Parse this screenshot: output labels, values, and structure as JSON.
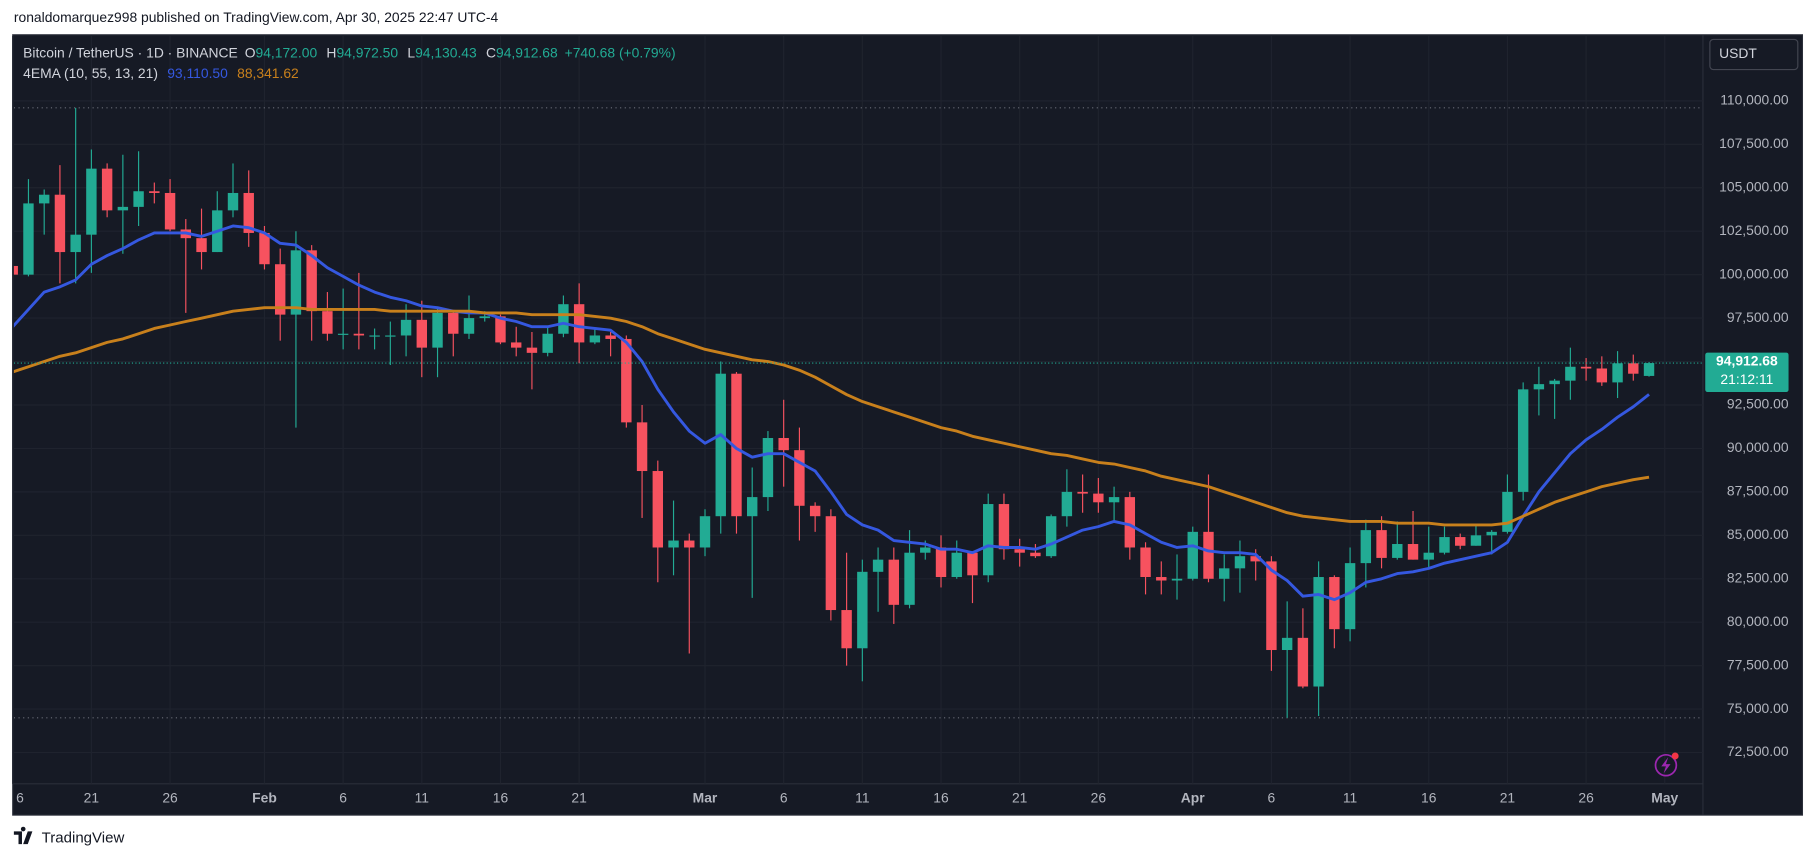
{
  "header": "ronaldomarquez998 published on TradingView.com, Apr 30, 2025 22:47 UTC-4",
  "footer": {
    "brand": "TradingView"
  },
  "chart_data": {
    "type": "candlestick",
    "title": "Bitcoin / TetherUS · 1D · BINANCE",
    "ohlc_legend": [
      [
        "O",
        "94,172.00"
      ],
      [
        "H",
        "94,972.50"
      ],
      [
        "L",
        "94,130.43"
      ],
      [
        "C",
        "94,912.68"
      ]
    ],
    "change_label": "+740.68 (+0.79%)",
    "indicator_label": "4EMA (10, 55, 13, 21)",
    "currency": "USDT",
    "price_tag": {
      "price": "94,912.68",
      "countdown": "21:12:11"
    },
    "up_color": "#22ab94",
    "down_color": "#f7525f",
    "grid": true,
    "categories": [
      "6",
      null,
      null,
      null,
      null,
      "21",
      null,
      null,
      null,
      null,
      "26",
      null,
      null,
      null,
      null,
      null,
      "Feb",
      null,
      null,
      null,
      null,
      "6",
      null,
      null,
      null,
      null,
      "11",
      null,
      null,
      null,
      null,
      "16",
      null,
      null,
      null,
      null,
      "21",
      null,
      null,
      null,
      null,
      null,
      null,
      null,
      "Mar",
      null,
      null,
      null,
      null,
      "6",
      null,
      null,
      null,
      null,
      "11",
      null,
      null,
      null,
      null,
      "16",
      null,
      null,
      null,
      null,
      "21",
      null,
      null,
      null,
      null,
      "26",
      null,
      null,
      null,
      null,
      null,
      "Apr",
      null,
      null,
      null,
      null,
      "6",
      null,
      null,
      null,
      null,
      "11",
      null,
      null,
      null,
      null,
      "16",
      null,
      null,
      null,
      null,
      "21",
      null,
      null,
      null,
      null,
      "26",
      null,
      null,
      null,
      null,
      "May"
    ],
    "open": [
      100500,
      100000,
      104100,
      104600,
      101300,
      102300,
      106100,
      103700,
      103900,
      104800,
      104700,
      102600,
      102100,
      101300,
      103700,
      104700,
      102400,
      100600,
      97700,
      101400,
      97900,
      96600,
      96600,
      96500,
      96500,
      96500,
      97400,
      95800,
      97800,
      96600,
      97500,
      97600,
      96100,
      95800,
      95500,
      96600,
      98300,
      96100,
      96500,
      96300,
      91500,
      88700,
      84300,
      84700,
      84300,
      86100,
      94300,
      86100,
      87200,
      90600,
      89900,
      86700,
      86100,
      80700,
      78500,
      82900,
      83600,
      81000,
      84000,
      84300,
      82600,
      84000,
      82700,
      86800,
      84200,
      84000,
      83800,
      86100,
      87500,
      87400,
      86900,
      87200,
      84300,
      82600,
      82400,
      82500,
      85200,
      82500,
      83100,
      83800,
      83500,
      78400,
      79100,
      76300,
      82600,
      79600,
      83400,
      85300,
      83700,
      84500,
      83600,
      84000,
      84900,
      84400,
      85000,
      85200,
      87500,
      93400,
      93700,
      93900,
      94700,
      94600,
      93800,
      94900,
      94172,
      null
    ],
    "high": [
      101300,
      105500,
      104900,
      106300,
      109600,
      107200,
      106400,
      106900,
      107100,
      105300,
      105500,
      103200,
      103800,
      104800,
      106400,
      106000,
      102800,
      101500,
      102500,
      101700,
      99000,
      99200,
      100100,
      96900,
      97300,
      98300,
      98500,
      98100,
      97900,
      98800,
      97900,
      97700,
      97000,
      96700,
      97000,
      98800,
      99500,
      96900,
      96700,
      96500,
      92500,
      89300,
      87000,
      85100,
      86500,
      95000,
      94400,
      88900,
      91000,
      92800,
      91200,
      86900,
      86500,
      84000,
      83600,
      84300,
      84300,
      85300,
      84700,
      85000,
      84700,
      84000,
      87400,
      87400,
      84800,
      84500,
      86200,
      88800,
      88500,
      88300,
      87800,
      87500,
      84600,
      83500,
      83900,
      85500,
      88500,
      83900,
      84700,
      84200,
      83800,
      81200,
      80800,
      83500,
      82700,
      84300,
      85900,
      86100,
      85800,
      86400,
      85500,
      85500,
      85100,
      85600,
      85300,
      88500,
      93800,
      94700,
      94000,
      95800,
      95200,
      95300,
      95600,
      95400,
      94972.5,
      null
    ],
    "low": [
      99200,
      99900,
      102300,
      99500,
      99500,
      100100,
      103300,
      101200,
      102800,
      104100,
      102500,
      97800,
      100300,
      101300,
      103300,
      101600,
      100300,
      96200,
      91200,
      96200,
      96200,
      95700,
      95700,
      95700,
      94800,
      95300,
      94100,
      94100,
      95300,
      96300,
      97300,
      96000,
      95300,
      93400,
      95300,
      96400,
      94900,
      96000,
      95300,
      91200,
      86000,
      82300,
      82700,
      78200,
      83800,
      85100,
      85100,
      81400,
      86400,
      87800,
      84700,
      85200,
      80100,
      77500,
      76600,
      80600,
      79900,
      80800,
      83600,
      82000,
      82500,
      81100,
      82300,
      83600,
      83200,
      83700,
      83700,
      85500,
      86300,
      86300,
      85800,
      83600,
      81600,
      81600,
      81300,
      82400,
      82300,
      81200,
      81700,
      82400,
      77200,
      74500,
      76200,
      74600,
      78500,
      78900,
      82000,
      83100,
      83600,
      83600,
      83100,
      83900,
      84200,
      84400,
      83900,
      85100,
      87000,
      91900,
      91700,
      92800,
      93900,
      93600,
      92900,
      93900,
      94130.43,
      null
    ],
    "close": [
      100000,
      104100,
      104600,
      101300,
      102300,
      106100,
      103700,
      103900,
      104800,
      104700,
      102600,
      102100,
      101300,
      103700,
      104700,
      102400,
      100600,
      97700,
      101400,
      97900,
      96600,
      96600,
      96500,
      96500,
      96500,
      97400,
      95800,
      97800,
      96600,
      97500,
      97600,
      96100,
      95800,
      95500,
      96600,
      98300,
      96100,
      96500,
      96300,
      91500,
      88700,
      84300,
      84700,
      84300,
      86100,
      94300,
      86100,
      87200,
      90600,
      89900,
      86700,
      86100,
      80700,
      78500,
      82900,
      83600,
      81000,
      84000,
      84300,
      82600,
      84000,
      82700,
      86800,
      84200,
      84000,
      83800,
      86100,
      87500,
      87400,
      86900,
      87200,
      84300,
      82600,
      82400,
      82500,
      85200,
      82500,
      83100,
      83800,
      83500,
      78400,
      79100,
      76300,
      82600,
      79600,
      83400,
      85300,
      83700,
      84500,
      83600,
      84000,
      84900,
      84400,
      85000,
      85200,
      87500,
      93400,
      93700,
      93900,
      94700,
      94600,
      93800,
      94900,
      94300,
      94912.68,
      null
    ],
    "series": [
      {
        "color": "#3558e0",
        "last_label": "93,110.50",
        "values": [
          97000,
          98000,
          99000,
          99300,
          99700,
          100600,
          101100,
          101500,
          102000,
          102400,
          102400,
          102400,
          102200,
          102500,
          102800,
          102700,
          102400,
          101800,
          101700,
          101100,
          100400,
          99900,
          99400,
          99000,
          98700,
          98500,
          98200,
          98100,
          97900,
          97800,
          97800,
          97500,
          97300,
          97000,
          97000,
          97200,
          97000,
          96900,
          96800,
          96100,
          95000,
          93400,
          92100,
          91000,
          90300,
          90800,
          90000,
          89500,
          89700,
          89700,
          89200,
          88700,
          87500,
          86200,
          85600,
          85300,
          84700,
          84600,
          84500,
          84200,
          84200,
          84000,
          84400,
          84300,
          84300,
          84200,
          84500,
          84900,
          85300,
          85500,
          85800,
          85600,
          85100,
          84600,
          84300,
          84400,
          84100,
          84000,
          84000,
          83900,
          83000,
          82400,
          81500,
          81600,
          81300,
          81700,
          82300,
          82500,
          82800,
          82900,
          83100,
          83400,
          83600,
          83800,
          84000,
          84600,
          86100,
          87500,
          88600,
          89700,
          90500,
          91100,
          91800,
          92400,
          93110.5,
          null
        ]
      },
      {
        "color": "#c8801c",
        "last_label": "88,341.62",
        "values": [
          94400,
          94700,
          95000,
          95300,
          95500,
          95800,
          96100,
          96300,
          96600,
          96900,
          97100,
          97300,
          97500,
          97700,
          97900,
          98000,
          98100,
          98100,
          98100,
          98000,
          98000,
          98000,
          98000,
          98000,
          97900,
          97900,
          97900,
          97900,
          97900,
          97900,
          97800,
          97800,
          97800,
          97700,
          97700,
          97700,
          97700,
          97600,
          97500,
          97300,
          97000,
          96600,
          96300,
          96000,
          95700,
          95500,
          95300,
          95100,
          95000,
          94800,
          94500,
          94100,
          93600,
          93100,
          92700,
          92400,
          92100,
          91800,
          91500,
          91200,
          91000,
          90700,
          90500,
          90300,
          90100,
          89900,
          89700,
          89600,
          89400,
          89200,
          89100,
          88900,
          88700,
          88400,
          88200,
          88000,
          87800,
          87500,
          87200,
          86900,
          86600,
          86300,
          86100,
          86000,
          85900,
          85800,
          85800,
          85800,
          85700,
          85700,
          85700,
          85600,
          85600,
          85600,
          85600,
          85700,
          86100,
          86500,
          86900,
          87200,
          87500,
          87800,
          88000,
          88200,
          88341.62,
          null
        ]
      }
    ],
    "ylim": [
      70000,
      112000
    ],
    "yticks": [
      {
        "value": 72500,
        "label": "72,500.00"
      },
      {
        "value": 75000,
        "label": "75,000.00"
      },
      {
        "value": 77500,
        "label": "77,500.00"
      },
      {
        "value": 80000,
        "label": "80,000.00"
      },
      {
        "value": 82500,
        "label": "82,500.00"
      },
      {
        "value": 85000,
        "label": "85,000.00"
      },
      {
        "value": 87500,
        "label": "87,500.00"
      },
      {
        "value": 90000,
        "label": "90,000.00"
      },
      {
        "value": 92500,
        "label": "92,500.00"
      },
      {
        "value": 95000,
        "label": "95,000.00"
      },
      {
        "value": 97500,
        "label": "97,500.00"
      },
      {
        "value": 100000,
        "label": "100,000.00"
      },
      {
        "value": 102500,
        "label": "102,500.00"
      },
      {
        "value": 105000,
        "label": "105,000.00"
      },
      {
        "value": 107500,
        "label": "107,500.00"
      },
      {
        "value": 110000,
        "label": "110,000.00"
      }
    ]
  }
}
